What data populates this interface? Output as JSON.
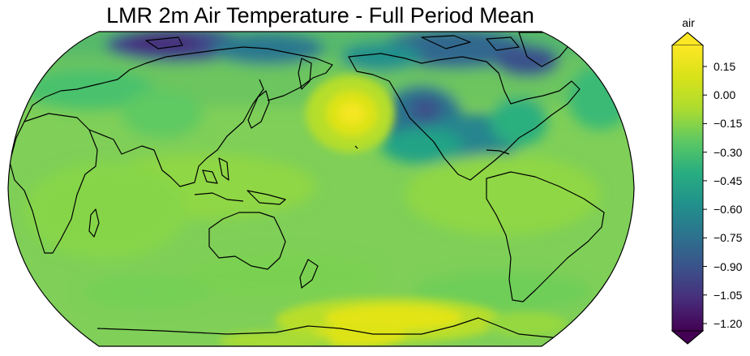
{
  "map": {
    "title": "LMR 2m Air Temperature - Full Period Mean",
    "projection": "Robinson (central longitude 180)",
    "field": "2m air temperature anomaly (full-period mean)",
    "colormap": "viridis",
    "features": [
      "warm anomaly over North-Central Pacific",
      "warm anomaly over East Antarctica",
      "cold anomaly over northern Siberia",
      "cold anomaly over western North America / Gulf of Alaska",
      "cool anomalies in Arctic Canada"
    ]
  },
  "colorbar": {
    "label": "air",
    "min": -1.2,
    "max": 0.15,
    "extend": "both",
    "ticks": [
      "0.15",
      "0.00",
      "−0.15",
      "−0.30",
      "−0.45",
      "−0.60",
      "−0.75",
      "−0.90",
      "−1.05",
      "−1.20"
    ],
    "tick_values": [
      0.15,
      0.0,
      -0.15,
      -0.3,
      -0.45,
      -0.6,
      -0.75,
      -0.9,
      -1.05,
      -1.2
    ]
  },
  "colors": {
    "c_max": "#fde725",
    "c_min": "#440154",
    "background_ocean": "#7fcf58"
  }
}
